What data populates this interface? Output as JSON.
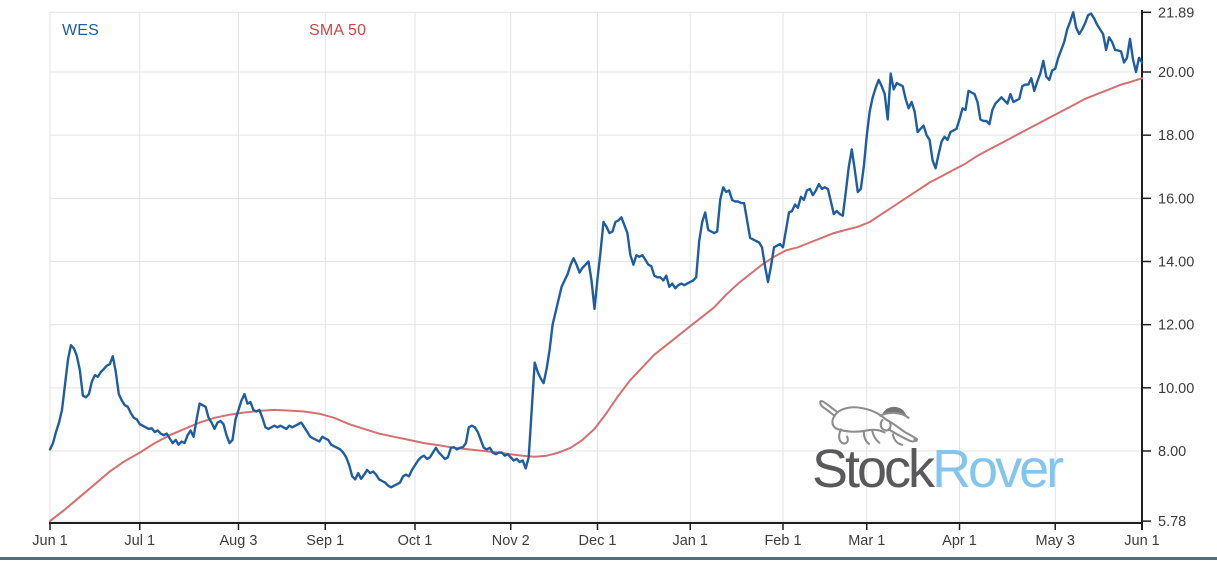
{
  "legend": {
    "price_label": "WES",
    "sma_label": "SMA 50"
  },
  "watermark": {
    "text_primary": "Stock",
    "text_secondary": "Rover"
  },
  "colors": {
    "price_line": "#1f5d9f",
    "sma_line": "#d4706f",
    "legend_price_text": "#1f5d9f",
    "legend_sma_text": "#ce4546",
    "grid": "#e3e3e3",
    "axis": "#1f1f1f",
    "tick_label": "#3c3c3c",
    "watermark_primary": "#59595b",
    "watermark_secondary": "#84c5ee",
    "watermark_dog": "#8d8d8d",
    "watermark_hat": "#757575",
    "bottom_bar": "#53707c"
  },
  "chart_data": {
    "type": "line",
    "title": "",
    "xlabel": "",
    "ylabel": "",
    "grid": true,
    "legend_position": "top-left-inside",
    "x_axis": {
      "unit": "days since first date",
      "ticks": [
        {
          "label": "Jun 1",
          "day": 0
        },
        {
          "label": "Jul 1",
          "day": 30
        },
        {
          "label": "Aug 3",
          "day": 63
        },
        {
          "label": "Sep 1",
          "day": 92
        },
        {
          "label": "Oct 1",
          "day": 122
        },
        {
          "label": "Nov 2",
          "day": 154
        },
        {
          "label": "Dec 1",
          "day": 183
        },
        {
          "label": "Jan 1",
          "day": 214
        },
        {
          "label": "Feb 1",
          "day": 245
        },
        {
          "label": "Mar 1",
          "day": 273
        },
        {
          "label": "Apr 1",
          "day": 304
        },
        {
          "label": "May 3",
          "day": 336
        },
        {
          "label": "Jun 1",
          "day": 365
        }
      ],
      "range_days": [
        0,
        365
      ]
    },
    "y_axis": {
      "ticks": [
        {
          "label": "21.89",
          "value": 21.89
        },
        {
          "label": "20.00",
          "value": 20.0
        },
        {
          "label": "18.00",
          "value": 18.0
        },
        {
          "label": "16.00",
          "value": 16.0
        },
        {
          "label": "14.00",
          "value": 14.0
        },
        {
          "label": "12.00",
          "value": 12.0
        },
        {
          "label": "10.00",
          "value": 10.0
        },
        {
          "label": "8.00",
          "value": 8.0
        },
        {
          "label": "5.78",
          "value": 5.78
        }
      ],
      "range": [
        5.78,
        21.89
      ]
    },
    "series": [
      {
        "name": "WES",
        "kind": "price",
        "sampling": "daily_from_day0",
        "values_daily": [
          8.05,
          8.25,
          8.6,
          8.9,
          9.3,
          10.1,
          10.9,
          11.35,
          11.25,
          11.0,
          10.55,
          9.75,
          9.7,
          9.8,
          10.2,
          10.4,
          10.35,
          10.5,
          10.6,
          10.7,
          10.75,
          11.0,
          10.5,
          9.8,
          9.6,
          9.45,
          9.4,
          9.2,
          9.05,
          9.0,
          8.85,
          8.8,
          8.75,
          8.7,
          8.72,
          8.6,
          8.65,
          8.55,
          8.5,
          8.55,
          8.4,
          8.25,
          8.35,
          8.2,
          8.3,
          8.25,
          8.5,
          8.65,
          8.45,
          9.0,
          9.5,
          9.45,
          9.4,
          9.05,
          8.9,
          8.7,
          8.9,
          8.95,
          8.85,
          8.5,
          8.25,
          8.35,
          9.0,
          9.3,
          9.6,
          9.8,
          9.5,
          9.55,
          9.3,
          9.25,
          9.3,
          9.05,
          8.75,
          8.7,
          8.75,
          8.8,
          8.75,
          8.8,
          8.75,
          8.7,
          8.8,
          8.75,
          8.8,
          8.85,
          8.9,
          8.75,
          8.6,
          8.45,
          8.4,
          8.35,
          8.3,
          8.45,
          8.4,
          8.35,
          8.2,
          8.15,
          8.1,
          8.05,
          7.95,
          7.8,
          7.55,
          7.2,
          7.1,
          7.3,
          7.12,
          7.25,
          7.4,
          7.3,
          7.35,
          7.25,
          7.1,
          7.05,
          7.0,
          6.9,
          6.85,
          6.9,
          6.95,
          7.0,
          7.2,
          7.25,
          7.2,
          7.4,
          7.55,
          7.7,
          7.8,
          7.85,
          7.75,
          7.8,
          7.95,
          8.1,
          7.95,
          7.85,
          7.75,
          7.8,
          8.1,
          8.12,
          8.05,
          8.1,
          8.12,
          8.25,
          8.75,
          8.8,
          8.75,
          8.6,
          8.35,
          8.1,
          8.05,
          8.1,
          7.95,
          7.9,
          7.95,
          7.95,
          7.85,
          7.9,
          7.8,
          7.7,
          7.75,
          7.65,
          7.7,
          7.45,
          7.8,
          9.3,
          10.8,
          10.5,
          10.3,
          10.15,
          10.6,
          11.2,
          12.0,
          12.4,
          12.8,
          13.2,
          13.4,
          13.6,
          13.9,
          14.1,
          13.9,
          13.65,
          13.8,
          13.9,
          14.0,
          13.4,
          12.5,
          13.45,
          14.3,
          15.25,
          15.1,
          14.9,
          14.95,
          15.25,
          15.3,
          15.4,
          15.15,
          14.9,
          14.2,
          13.9,
          14.2,
          14.15,
          14.2,
          14.05,
          13.9,
          13.85,
          13.55,
          13.5,
          13.5,
          13.4,
          13.55,
          13.2,
          13.3,
          13.15,
          13.25,
          13.3,
          13.25,
          13.3,
          13.35,
          13.4,
          13.5,
          14.65,
          15.25,
          15.55,
          15.0,
          14.95,
          14.9,
          14.95,
          15.95,
          16.35,
          16.2,
          16.25,
          15.95,
          15.9,
          15.9,
          15.85,
          15.85,
          15.3,
          14.75,
          14.7,
          14.65,
          14.6,
          14.45,
          13.85,
          13.35,
          13.85,
          14.45,
          14.5,
          14.55,
          14.45,
          15.0,
          15.55,
          15.6,
          15.8,
          15.7,
          16.05,
          15.95,
          16.25,
          16.3,
          16.1,
          16.25,
          16.45,
          16.3,
          16.35,
          16.3,
          15.9,
          15.5,
          15.6,
          15.5,
          15.45,
          16.2,
          17.0,
          17.55,
          16.9,
          16.2,
          16.3,
          17.0,
          18.0,
          18.75,
          19.2,
          19.5,
          19.75,
          19.55,
          19.3,
          18.5,
          19.95,
          19.45,
          19.65,
          19.6,
          19.55,
          19.15,
          18.85,
          19.05,
          18.75,
          18.1,
          18.2,
          18.3,
          18.0,
          17.85,
          17.2,
          16.95,
          17.4,
          17.8,
          17.95,
          17.85,
          18.1,
          18.15,
          18.2,
          18.5,
          18.85,
          18.8,
          19.4,
          19.35,
          19.3,
          19.05,
          18.5,
          18.45,
          18.45,
          18.35,
          18.8,
          19.0,
          19.1,
          19.2,
          19.1,
          19.0,
          19.3,
          19.05,
          19.1,
          19.15,
          19.55,
          19.6,
          19.6,
          19.8,
          19.4,
          19.7,
          19.95,
          20.35,
          19.85,
          19.75,
          20.05,
          20.1,
          20.45,
          20.7,
          20.95,
          21.35,
          21.6,
          21.89,
          21.4,
          21.2,
          21.35,
          21.55,
          21.8,
          21.85,
          21.7,
          21.5,
          21.35,
          21.2,
          20.7,
          21.1,
          20.95,
          20.7,
          20.68,
          20.65,
          20.3,
          20.45,
          21.05,
          20.4,
          20.0,
          20.45,
          20.3
        ]
      },
      {
        "name": "SMA 50",
        "kind": "moving_average",
        "sampling": "day_value_pairs",
        "points": [
          [
            0,
            5.78
          ],
          [
            5,
            6.15
          ],
          [
            10,
            6.55
          ],
          [
            15,
            6.95
          ],
          [
            20,
            7.35
          ],
          [
            25,
            7.68
          ],
          [
            30,
            7.95
          ],
          [
            35,
            8.25
          ],
          [
            40,
            8.5
          ],
          [
            45,
            8.7
          ],
          [
            50,
            8.9
          ],
          [
            55,
            9.05
          ],
          [
            60,
            9.15
          ],
          [
            65,
            9.22
          ],
          [
            70,
            9.27
          ],
          [
            75,
            9.3
          ],
          [
            80,
            9.28
          ],
          [
            85,
            9.25
          ],
          [
            90,
            9.18
          ],
          [
            95,
            9.05
          ],
          [
            100,
            8.85
          ],
          [
            105,
            8.7
          ],
          [
            110,
            8.55
          ],
          [
            115,
            8.45
          ],
          [
            120,
            8.35
          ],
          [
            125,
            8.25
          ],
          [
            130,
            8.18
          ],
          [
            135,
            8.1
          ],
          [
            140,
            8.05
          ],
          [
            145,
            8.0
          ],
          [
            150,
            7.95
          ],
          [
            154,
            7.9
          ],
          [
            158,
            7.85
          ],
          [
            162,
            7.82
          ],
          [
            166,
            7.85
          ],
          [
            170,
            7.95
          ],
          [
            174,
            8.1
          ],
          [
            178,
            8.35
          ],
          [
            182,
            8.7
          ],
          [
            186,
            9.2
          ],
          [
            190,
            9.75
          ],
          [
            194,
            10.25
          ],
          [
            198,
            10.65
          ],
          [
            202,
            11.05
          ],
          [
            206,
            11.35
          ],
          [
            210,
            11.65
          ],
          [
            214,
            11.95
          ],
          [
            218,
            12.25
          ],
          [
            222,
            12.55
          ],
          [
            226,
            12.95
          ],
          [
            230,
            13.3
          ],
          [
            234,
            13.6
          ],
          [
            238,
            13.9
          ],
          [
            242,
            14.15
          ],
          [
            246,
            14.35
          ],
          [
            250,
            14.45
          ],
          [
            254,
            14.6
          ],
          [
            258,
            14.75
          ],
          [
            262,
            14.9
          ],
          [
            266,
            15.0
          ],
          [
            270,
            15.1
          ],
          [
            274,
            15.25
          ],
          [
            278,
            15.5
          ],
          [
            282,
            15.75
          ],
          [
            286,
            16.0
          ],
          [
            290,
            16.25
          ],
          [
            294,
            16.5
          ],
          [
            298,
            16.7
          ],
          [
            302,
            16.9
          ],
          [
            306,
            17.1
          ],
          [
            310,
            17.35
          ],
          [
            314,
            17.55
          ],
          [
            318,
            17.75
          ],
          [
            322,
            17.95
          ],
          [
            326,
            18.15
          ],
          [
            330,
            18.35
          ],
          [
            334,
            18.55
          ],
          [
            338,
            18.75
          ],
          [
            342,
            18.95
          ],
          [
            346,
            19.15
          ],
          [
            350,
            19.3
          ],
          [
            354,
            19.45
          ],
          [
            358,
            19.6
          ],
          [
            361,
            19.68
          ],
          [
            365,
            19.8
          ]
        ]
      }
    ]
  },
  "layout_note": "single price chart, right-side value axis, bottom month axis"
}
